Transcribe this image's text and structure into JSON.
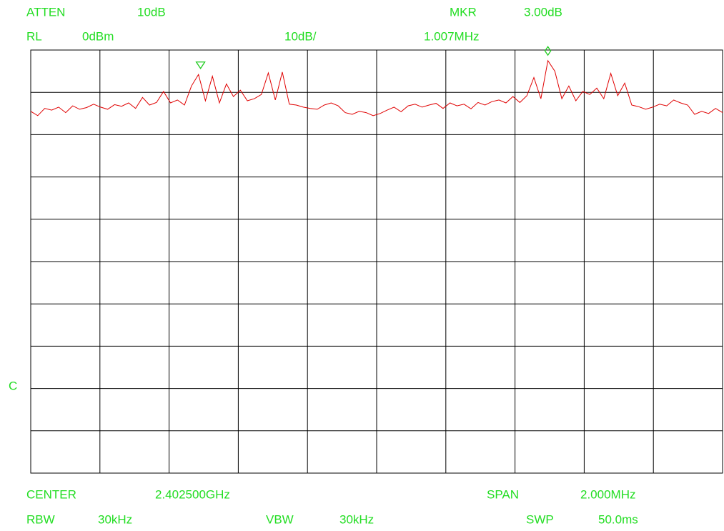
{
  "header": {
    "atten_label": "ATTEN",
    "atten_value": "10dB",
    "mkr_label": "MKR",
    "mkr_value": "3.00dB",
    "rl_label": "RL",
    "rl_value": "0dBm",
    "scale": "10dB/",
    "mkr_freq": "1.007MHz"
  },
  "footer": {
    "center_label": "CENTER",
    "center_value": "2.402500GHz",
    "span_label": "SPAN",
    "span_value": "2.000MHz",
    "rbw_label": "RBW",
    "rbw_value": "30kHz",
    "vbw_label": "VBW",
    "vbw_value": "30kHz",
    "swp_label": "SWP",
    "swp_value": "50.0ms"
  },
  "side_label": "C",
  "trace": {
    "color": "#e00000",
    "ylim": [
      -100,
      0
    ],
    "values": [
      -14.5,
      -15.5,
      -13.8,
      -14.2,
      -13.5,
      -14.8,
      -13.2,
      -14,
      -13.6,
      -12.8,
      -13.5,
      -14,
      -12.9,
      -13.3,
      -12.5,
      -13.8,
      -11.2,
      -13,
      -12.4,
      -9.8,
      -12.5,
      -11.8,
      -13,
      -8.5,
      -5.8,
      -12,
      -6.2,
      -12.5,
      -8,
      -11,
      -9.5,
      -12,
      -11.5,
      -10.5,
      -5.4,
      -11.8,
      -5.2,
      -12.8,
      -13,
      -13.5,
      -13.8,
      -14,
      -13,
      -12.5,
      -13.2,
      -14.8,
      -15.2,
      -14.5,
      -14.8,
      -15.5,
      -15,
      -14.2,
      -13.5,
      -14.6,
      -13.2,
      -12.8,
      -13.5,
      -13,
      -12.6,
      -13.8,
      -12.5,
      -13.2,
      -12.8,
      -13.9,
      -12.4,
      -13,
      -12.2,
      -11.8,
      -12.5,
      -11,
      -12.4,
      -10.8,
      -6.5,
      -11.5,
      -2.5,
      -5,
      -11.5,
      -8.5,
      -12,
      -9.8,
      -10.5,
      -9,
      -11.5,
      -5.5,
      -10.8,
      -7.8,
      -13,
      -13.4,
      -14,
      -13.5,
      -12.8,
      -13.2,
      -11.8,
      -12.5,
      -13,
      -15.2,
      -14.5,
      -15,
      -13.8,
      -14.8
    ],
    "markers": [
      {
        "index": 24.3,
        "value": -5.2,
        "shape": "triangle",
        "color": "#22cc22"
      },
      {
        "index": 74,
        "value": -1.9,
        "shape": "diamond",
        "color": "#22cc22"
      }
    ]
  }
}
